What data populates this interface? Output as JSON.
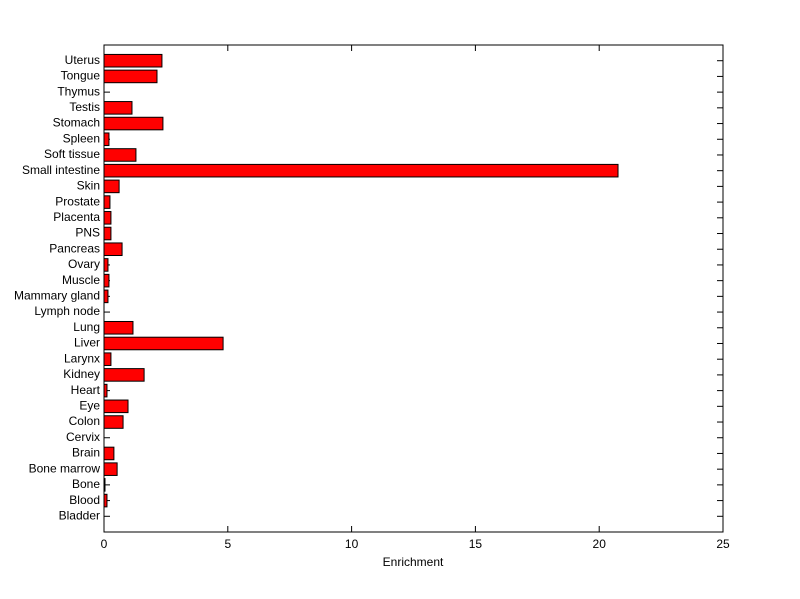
{
  "chart_data": {
    "type": "barh",
    "xlabel": "Enrichment",
    "categories": [
      "Bladder",
      "Blood",
      "Bone",
      "Bone marrow",
      "Brain",
      "Cervix",
      "Colon",
      "Eye",
      "Heart",
      "Kidney",
      "Larynx",
      "Liver",
      "Lung",
      "Lymph node",
      "Mammary gland",
      "Muscle",
      "Ovary",
      "Pancreas",
      "PNS",
      "Placenta",
      "Prostate",
      "Skin",
      "Small intestine",
      "Soft tissue",
      "Spleen",
      "Stomach",
      "Testis",
      "Thymus",
      "Tongue",
      "Uterus"
    ],
    "values": [
      0,
      0.12,
      0.04,
      0.53,
      0.4,
      0,
      0.77,
      0.97,
      0.12,
      1.62,
      0.28,
      4.81,
      1.17,
      0,
      0.16,
      0.2,
      0.16,
      0.73,
      0.28,
      0.28,
      0.24,
      0.61,
      20.76,
      1.29,
      0.2,
      2.38,
      1.13,
      0,
      2.14,
      2.34
    ],
    "color": "#ff0000",
    "xlim": [
      0,
      25
    ],
    "xticks": [
      0,
      5,
      10,
      15,
      20,
      25
    ]
  }
}
